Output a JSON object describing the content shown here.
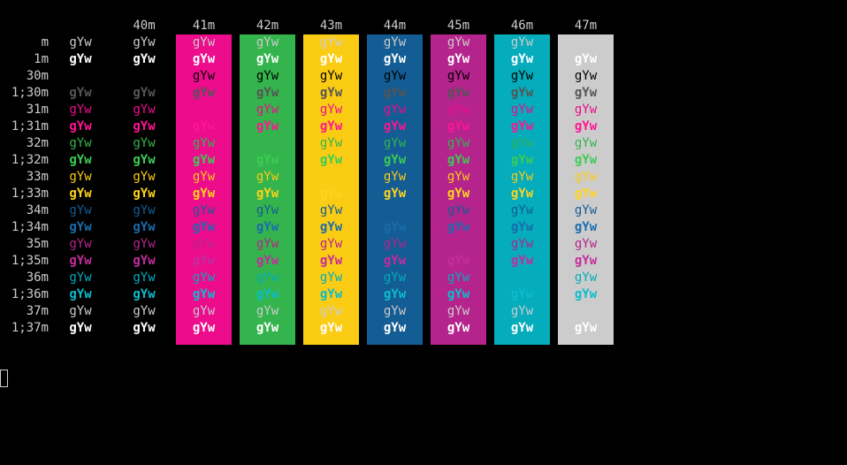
{
  "sample": "gYw",
  "column_headers": [
    "",
    "",
    "40m",
    "41m",
    "42m",
    "43m",
    "44m",
    "45m",
    "46m",
    "47m"
  ],
  "bg_colors": {
    "none": null,
    "40m": null,
    "41m": "#ec0c8c",
    "42m": "#34b44c",
    "43m": "#fbcc14",
    "44m": "#145c94",
    "45m": "#b4248c",
    "46m": "#04acbc",
    "47m": "#cccccc"
  },
  "rows": [
    {
      "label": "m",
      "fg": "#cccccc",
      "bold": false
    },
    {
      "label": "1m",
      "fg": "#ffffff",
      "bold": true
    },
    {
      "label": "30m",
      "fg": "#000000",
      "bold": false
    },
    {
      "label": "1;30m",
      "fg": "#555555",
      "bold": true
    },
    {
      "label": "31m",
      "fg": "#ec0c8c",
      "bold": false
    },
    {
      "label": "1;31m",
      "fg": "#ff1493",
      "bold": true
    },
    {
      "label": "32m",
      "fg": "#34b44c",
      "bold": false
    },
    {
      "label": "1;32m",
      "fg": "#3ccc54",
      "bold": true
    },
    {
      "label": "33m",
      "fg": "#fbcc14",
      "bold": false
    },
    {
      "label": "1;33m",
      "fg": "#ffd41c",
      "bold": true
    },
    {
      "label": "34m",
      "fg": "#145c94",
      "bold": false
    },
    {
      "label": "1;34m",
      "fg": "#1a6cac",
      "bold": true
    },
    {
      "label": "35m",
      "fg": "#b4248c",
      "bold": false
    },
    {
      "label": "1;35m",
      "fg": "#c42c9c",
      "bold": true
    },
    {
      "label": "36m",
      "fg": "#04acbc",
      "bold": false
    },
    {
      "label": "1;36m",
      "fg": "#0cbccc",
      "bold": true
    },
    {
      "label": "37m",
      "fg": "#cccccc",
      "bold": false
    },
    {
      "label": "1;37m",
      "fg": "#ffffff",
      "bold": true
    }
  ],
  "cursor_icon": "block-cursor-icon"
}
